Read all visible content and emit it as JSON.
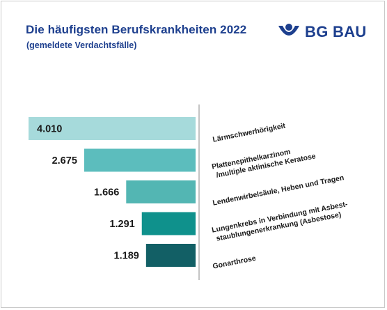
{
  "header": {
    "title": "Die häufigsten Berufskrankheiten 2022",
    "subtitle": "(gemeldete Verdachtsfälle)"
  },
  "logo": {
    "text": "BG BAU",
    "icon": "bg-bau-emblem-icon",
    "color": "#1d3f8e"
  },
  "colors": {
    "title": "#1d3f8e",
    "axis": "#8a8a8a"
  },
  "chart_data": {
    "type": "bar",
    "orientation": "horizontal",
    "direction": "right-aligned",
    "categories": [
      [
        "Lärmschwerhörigkeit"
      ],
      [
        "Plattenepithelkarzinom",
        "/multiple aktinische Keratose"
      ],
      [
        "Lendenwirbelsäule, Heben und Tragen"
      ],
      [
        "Lungenkrebs in Verbindung mit Asbest-",
        "staublungenerkrankung (Asbestose)"
      ],
      [
        "Gonarthrose"
      ]
    ],
    "values": [
      4010,
      2675,
      1666,
      1291,
      1189
    ],
    "value_labels": [
      "4.010",
      "2.675",
      "1.666",
      "1.291",
      "1.189"
    ],
    "bar_colors": [
      "#a6dadb",
      "#5cbdbd",
      "#53b6b3",
      "#0f918c",
      "#125f65"
    ],
    "xlim": [
      0,
      4010
    ],
    "title": "Die häufigsten Berufskrankheiten 2022",
    "subtitle": "(gemeldete Verdachtsfälle)"
  }
}
